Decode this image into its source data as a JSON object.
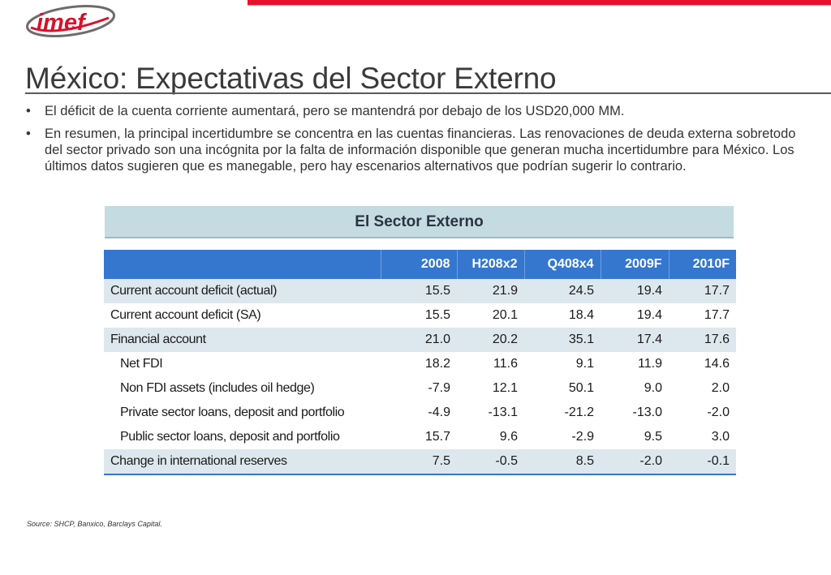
{
  "logo": {
    "text": "imef",
    "colors": {
      "red": "#d6122a",
      "gray": "#6d6d6d"
    }
  },
  "colors": {
    "accent_red": "#e8102a",
    "table_header": "#3577cf",
    "section_header": "#c5dbe2",
    "row_shade": "#dde8ee"
  },
  "slide": {
    "title": "México: Expectativas del Sector Externo",
    "bullets": [
      {
        "marker": "•",
        "text": "El déficit de la cuenta corriente aumentará, pero se mantendrá por debajo de los USD20,000 MM."
      },
      {
        "marker": "•",
        "text": "En resumen, la principal incertidumbre se concentra en las cuentas financieras. Las renovaciones de deuda externa sobretodo del sector privado son una incógnita por la falta de información disponible que generan mucha incertidumbre para México.  Los últimos datos sugieren que es manegable, pero hay escenarios alternativos que podrían sugerir lo contrario."
      }
    ],
    "table_title": "El Sector Externo",
    "table": {
      "columns": [
        "",
        "2008",
        "H208x2",
        "Q408x4",
        "2009F",
        "2010F"
      ],
      "rows": [
        {
          "label": "Current account deficit (actual)",
          "values": [
            "15.5",
            "21.9",
            "24.5",
            "19.4",
            "17.7"
          ]
        },
        {
          "label": "Current account deficit (SA)",
          "values": [
            "15.5",
            "20.1",
            "18.4",
            "19.4",
            "17.7"
          ]
        },
        {
          "label": "Financial account",
          "values": [
            "21.0",
            "20.2",
            "35.1",
            "17.4",
            "17.6"
          ]
        },
        {
          "label": "Net FDI",
          "values": [
            "18.2",
            "11.6",
            "9.1",
            "11.9",
            "14.6"
          ]
        },
        {
          "label": "Non FDI assets (includes oil hedge)",
          "values": [
            "-7.9",
            "12.1",
            "50.1",
            "9.0",
            "2.0"
          ]
        },
        {
          "label": "Private sector loans, deposit and portfolio",
          "values": [
            "-4.9",
            "-13.1",
            "-21.2",
            "-13.0",
            "-2.0"
          ]
        },
        {
          "label": "Public sector loans, deposit and portfolio",
          "values": [
            "15.7",
            "9.6",
            "-2.9",
            "9.5",
            "3.0"
          ]
        },
        {
          "label": "Change in international reserves",
          "values": [
            "7.5",
            "-0.5",
            "8.5",
            "-2.0",
            "-0.1"
          ]
        }
      ]
    },
    "source": "Source: SHCP, Banxico, Barclays Capital."
  }
}
